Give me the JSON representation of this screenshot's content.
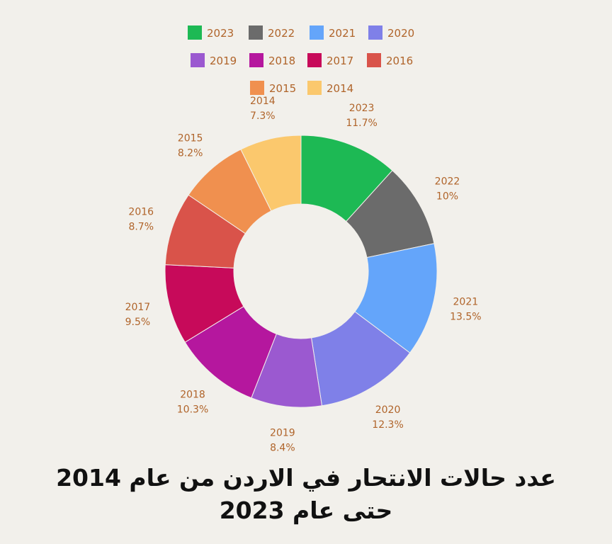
{
  "chart_data": {
    "type": "pie",
    "donut": true,
    "title_lines": [
      "عدد حالات الانتحار في الاردن من عام 2014",
      "حتى عام 2023"
    ],
    "legend_placement": "top",
    "categories": [
      "2023",
      "2022",
      "2021",
      "2020",
      "2019",
      "2018",
      "2017",
      "2016",
      "2015",
      "2014"
    ],
    "values": [
      11.7,
      10,
      13.5,
      12.3,
      8.4,
      10.3,
      9.5,
      8.7,
      8.2,
      7.3
    ],
    "value_labels": [
      "11.7%",
      "10%",
      "13.5%",
      "12.3%",
      "8.4%",
      "10.3%",
      "9.5%",
      "8.7%",
      "8.2%",
      "7.3%"
    ],
    "colors": [
      "#1db954",
      "#6b6b6b",
      "#64a5fa",
      "#7f80e8",
      "#9b59d0",
      "#b5179e",
      "#c70a5a",
      "#d9534a",
      "#f0904f",
      "#fbc86d"
    ],
    "label_color": "#b0642a",
    "background": "#f2f0eb"
  }
}
